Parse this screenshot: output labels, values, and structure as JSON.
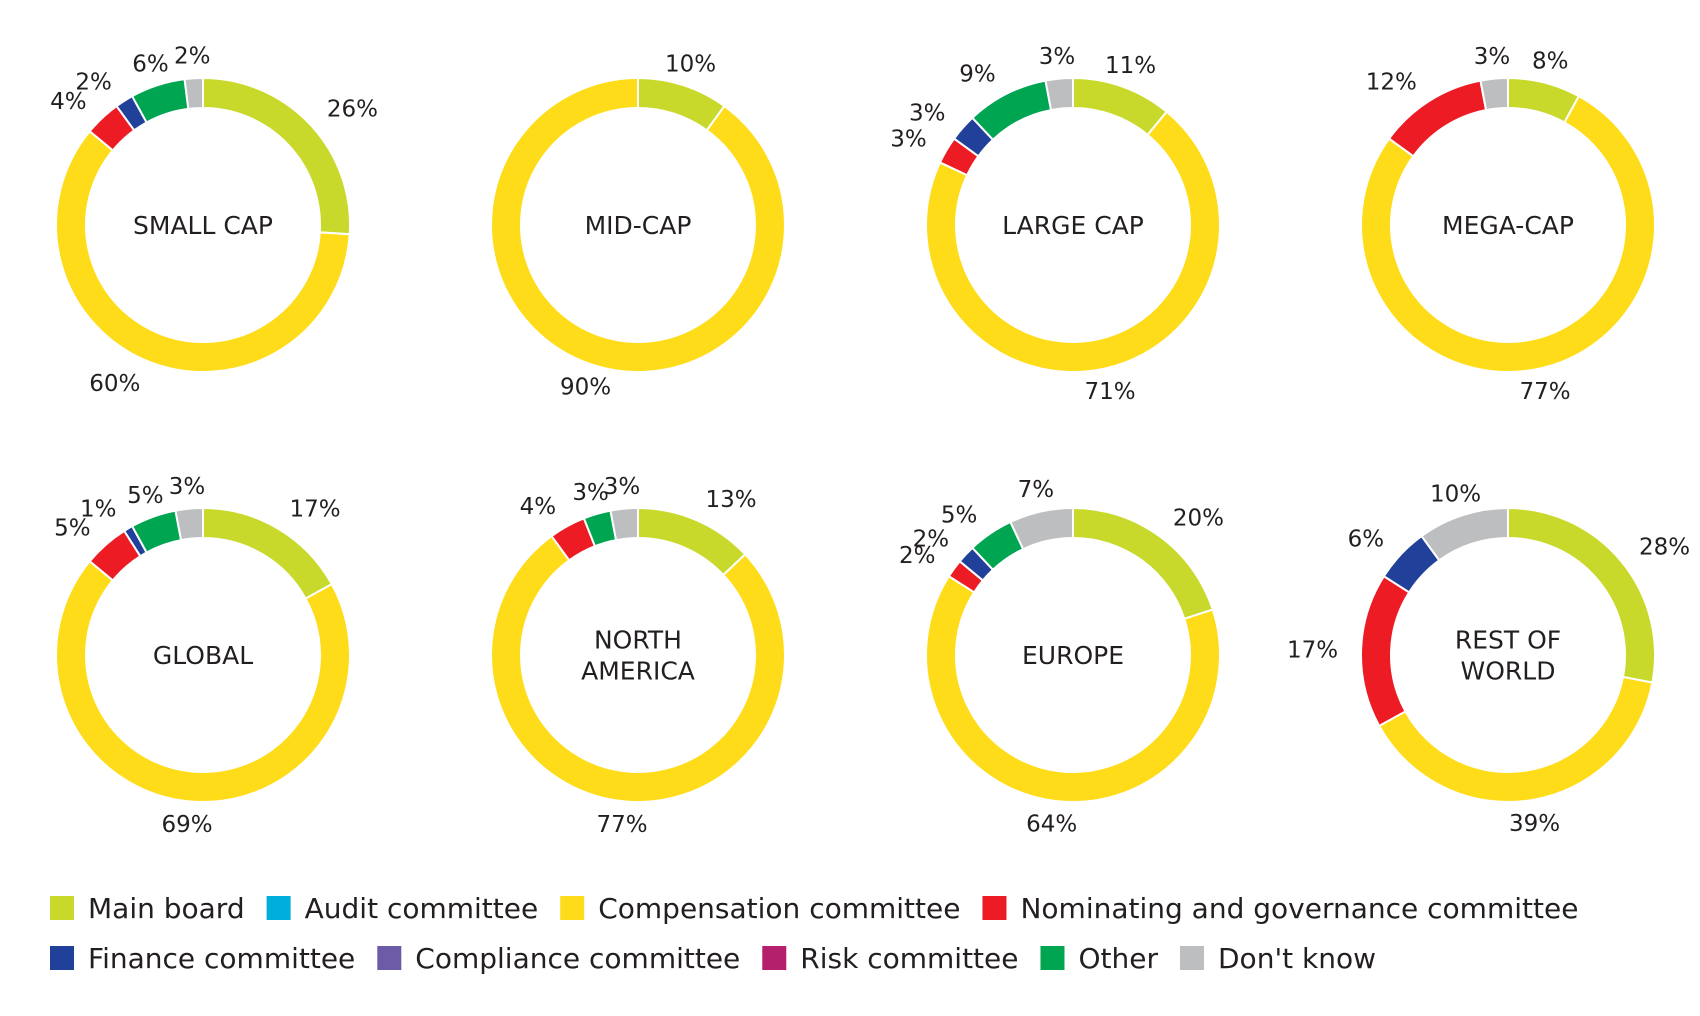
{
  "chart_data": {
    "type": "pie",
    "legend_position": "bottom",
    "categories": [
      "Main board",
      "Audit committee",
      "Compensation committee",
      "Nominating and governance committee",
      "Finance committee",
      "Compliance committee",
      "Risk committee",
      "Other",
      "Don't know"
    ],
    "colors": {
      "Main board": "#c8d92c",
      "Audit committee": "#00aedb",
      "Compensation committee": "#ffdc1a",
      "Nominating and governance committee": "#ed1c24",
      "Finance committee": "#21409a",
      "Compliance committee": "#6c5ba7",
      "Risk committee": "#b4206b",
      "Other": "#00a551",
      "Don't know": "#bcbec0"
    },
    "charts": [
      {
        "center_label": [
          "SMALL CAP"
        ],
        "slices": [
          {
            "category": "Main board",
            "value": 26,
            "label": "26%"
          },
          {
            "category": "Compensation committee",
            "value": 60,
            "label": "60%"
          },
          {
            "category": "Nominating and governance committee",
            "value": 4,
            "label": "4%"
          },
          {
            "category": "Finance committee",
            "value": 2,
            "label": "2%"
          },
          {
            "category": "Other",
            "value": 6,
            "label": "6%"
          },
          {
            "category": "Don't know",
            "value": 2,
            "label": "2%"
          }
        ]
      },
      {
        "center_label": [
          "MID-CAP"
        ],
        "slices": [
          {
            "category": "Main board",
            "value": 10,
            "label": "10%"
          },
          {
            "category": "Compensation committee",
            "value": 90,
            "label": "90%"
          }
        ]
      },
      {
        "center_label": [
          "LARGE CAP"
        ],
        "slices": [
          {
            "category": "Main board",
            "value": 11,
            "label": "11%"
          },
          {
            "category": "Compensation committee",
            "value": 71,
            "label": "71%"
          },
          {
            "category": "Nominating and governance committee",
            "value": 3,
            "label": "3%"
          },
          {
            "category": "Finance committee",
            "value": 3,
            "label": "3%"
          },
          {
            "category": "Other",
            "value": 9,
            "label": "9%"
          },
          {
            "category": "Don't know",
            "value": 3,
            "label": "3%"
          }
        ]
      },
      {
        "center_label": [
          "MEGA-CAP"
        ],
        "slices": [
          {
            "category": "Main board",
            "value": 8,
            "label": "8%"
          },
          {
            "category": "Compensation committee",
            "value": 77,
            "label": "77%"
          },
          {
            "category": "Nominating and governance committee",
            "value": 12,
            "label": "12%"
          },
          {
            "category": "Don't know",
            "value": 3,
            "label": "3%"
          }
        ]
      },
      {
        "center_label": [
          "GLOBAL"
        ],
        "slices": [
          {
            "category": "Main board",
            "value": 17,
            "label": "17%"
          },
          {
            "category": "Compensation committee",
            "value": 69,
            "label": "69%"
          },
          {
            "category": "Nominating and governance committee",
            "value": 5,
            "label": "5%"
          },
          {
            "category": "Finance committee",
            "value": 1,
            "label": "1%"
          },
          {
            "category": "Other",
            "value": 5,
            "label": "5%"
          },
          {
            "category": "Don't know",
            "value": 3,
            "label": "3%"
          }
        ]
      },
      {
        "center_label": [
          "NORTH",
          "AMERICA"
        ],
        "slices": [
          {
            "category": "Main board",
            "value": 13,
            "label": "13%"
          },
          {
            "category": "Compensation committee",
            "value": 77,
            "label": "77%"
          },
          {
            "category": "Nominating and governance committee",
            "value": 4,
            "label": "4%"
          },
          {
            "category": "Other",
            "value": 3,
            "label": "3%"
          },
          {
            "category": "Don't know",
            "value": 3,
            "label": "3%"
          }
        ]
      },
      {
        "center_label": [
          "EUROPE"
        ],
        "slices": [
          {
            "category": "Main board",
            "value": 20,
            "label": "20%"
          },
          {
            "category": "Compensation committee",
            "value": 64,
            "label": "64%"
          },
          {
            "category": "Nominating and governance committee",
            "value": 2,
            "label": "2%"
          },
          {
            "category": "Finance committee",
            "value": 2,
            "label": "2%"
          },
          {
            "category": "Other",
            "value": 5,
            "label": "5%"
          },
          {
            "category": "Don't know",
            "value": 7,
            "label": "7%"
          }
        ]
      },
      {
        "center_label": [
          "REST OF",
          "WORLD"
        ],
        "slices": [
          {
            "category": "Main board",
            "value": 28,
            "label": "28%"
          },
          {
            "category": "Compensation committee",
            "value": 39,
            "label": "39%"
          },
          {
            "category": "Nominating and governance committee",
            "value": 17,
            "label": "17%"
          },
          {
            "category": "Finance committee",
            "value": 6,
            "label": "6%"
          },
          {
            "category": "Don't know",
            "value": 10,
            "label": "10%"
          }
        ]
      }
    ]
  }
}
